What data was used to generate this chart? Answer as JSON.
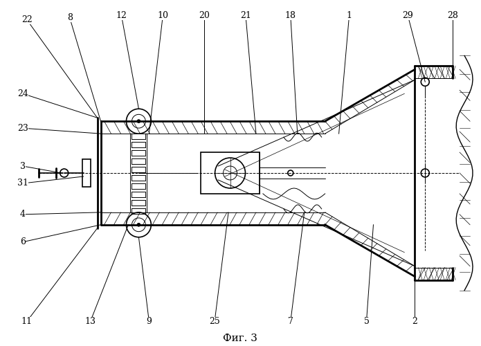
{
  "title": "Фиг. 3",
  "background_color": "#ffffff",
  "line_color": "#000000"
}
